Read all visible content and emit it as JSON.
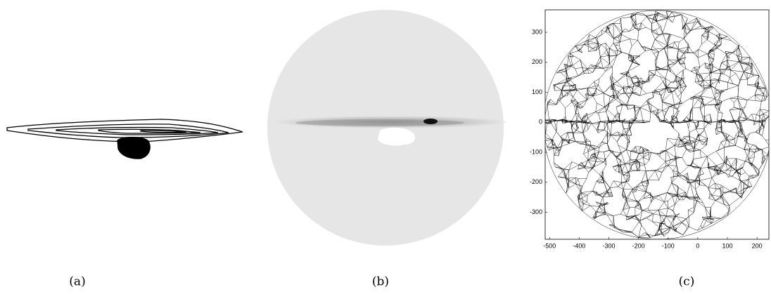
{
  "panels": [
    {
      "caption": "(a)"
    },
    {
      "caption": "(b)"
    },
    {
      "caption": "(c)",
      "xlim": [
        -515,
        240
      ],
      "ylim": [
        -390,
        375
      ],
      "xticks": [
        -500,
        -400,
        -300,
        -200,
        -100,
        0,
        100,
        200
      ],
      "yticks": [
        -300,
        -200,
        -100,
        0,
        100,
        200,
        300
      ]
    }
  ]
}
